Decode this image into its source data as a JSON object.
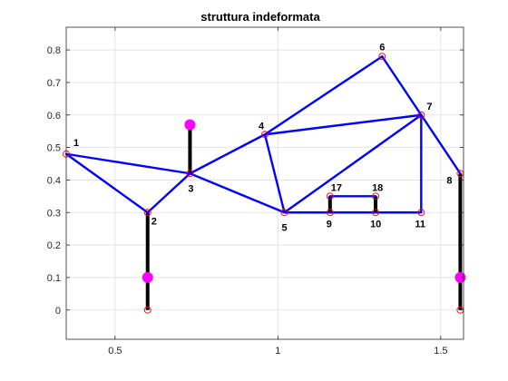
{
  "chart_data": {
    "type": "line",
    "title": "struttura indeformata",
    "xlabel": "",
    "ylabel": "",
    "xlim": [
      0.35,
      1.57
    ],
    "ylim": [
      -0.09,
      0.87
    ],
    "xticks": [
      0.5,
      1,
      1.5
    ],
    "xtick_labels": [
      "0.5",
      "1",
      "1.5"
    ],
    "yticks": [
      0,
      0.1,
      0.2,
      0.3,
      0.4,
      0.5,
      0.6,
      0.7,
      0.8
    ],
    "ytick_labels": [
      "0",
      "0.1",
      "0.2",
      "0.3",
      "0.4",
      "0.5",
      "0.6",
      "0.7",
      "0.8"
    ],
    "grid": true,
    "colors": {
      "truss": "#0000ff",
      "support": "#000000",
      "node_marker": "#ff0000",
      "pin_marker": "#ff00ff"
    },
    "nodes": [
      {
        "id": "1",
        "x": 0.35,
        "y": 0.48
      },
      {
        "id": "2",
        "x": 0.6,
        "y": 0.3
      },
      {
        "id": "3",
        "x": 0.73,
        "y": 0.42
      },
      {
        "id": "4",
        "x": 0.96,
        "y": 0.54
      },
      {
        "id": "5",
        "x": 1.02,
        "y": 0.3
      },
      {
        "id": "6",
        "x": 1.32,
        "y": 0.78
      },
      {
        "id": "7",
        "x": 1.44,
        "y": 0.6
      },
      {
        "id": "8",
        "x": 1.56,
        "y": 0.42
      },
      {
        "id": "9",
        "x": 1.16,
        "y": 0.3
      },
      {
        "id": "10",
        "x": 1.3,
        "y": 0.3
      },
      {
        "id": "11",
        "x": 1.44,
        "y": 0.3
      },
      {
        "id": "17",
        "x": 1.16,
        "y": 0.35
      },
      {
        "id": "18",
        "x": 1.3,
        "y": 0.35
      }
    ],
    "members": [
      [
        "1",
        "2"
      ],
      [
        "1",
        "3"
      ],
      [
        "2",
        "3"
      ],
      [
        "3",
        "4"
      ],
      [
        "3",
        "5"
      ],
      [
        "4",
        "5"
      ],
      [
        "4",
        "6"
      ],
      [
        "4",
        "7"
      ],
      [
        "6",
        "7"
      ],
      [
        "7",
        "5"
      ],
      [
        "5",
        "11"
      ],
      [
        "7",
        "11"
      ],
      [
        "7",
        "8"
      ],
      [
        "17",
        "18"
      ]
    ],
    "supports": [
      {
        "from": [
          0.6,
          0.3
        ],
        "to": [
          0.6,
          0.0
        ]
      },
      {
        "from": [
          0.73,
          0.42
        ],
        "to": [
          0.73,
          0.57
        ]
      },
      {
        "from": [
          1.16,
          0.3
        ],
        "to": [
          1.16,
          0.35
        ]
      },
      {
        "from": [
          1.3,
          0.3
        ],
        "to": [
          1.3,
          0.35
        ]
      },
      {
        "from": [
          1.56,
          0.42
        ],
        "to": [
          1.56,
          0.0
        ]
      }
    ],
    "extra_node_markers": [
      {
        "x": 0.6,
        "y": 0.0
      },
      {
        "x": 1.56,
        "y": 0.0
      }
    ],
    "pin_markers": [
      {
        "x": 0.6,
        "y": 0.1
      },
      {
        "x": 0.73,
        "y": 0.57
      },
      {
        "x": 1.56,
        "y": 0.1
      }
    ]
  }
}
